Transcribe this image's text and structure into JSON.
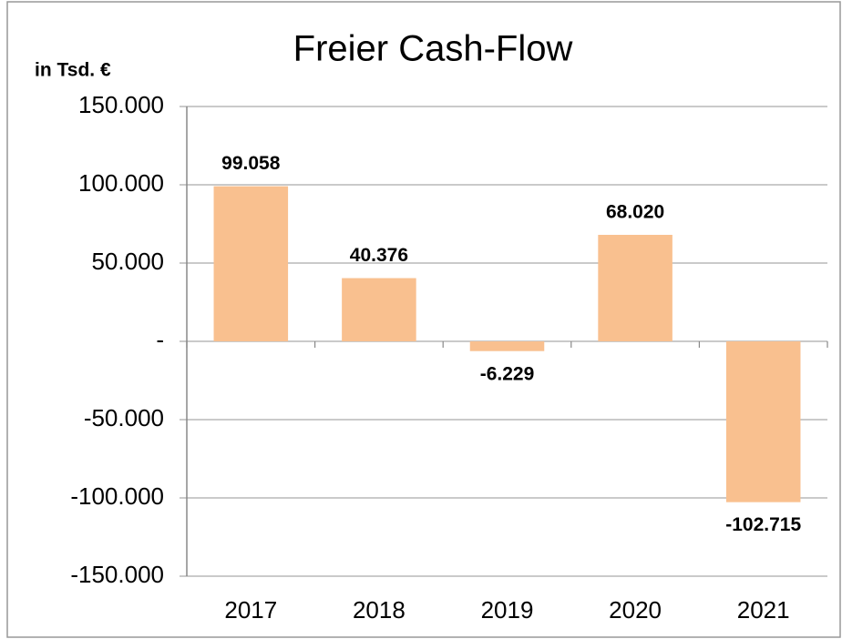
{
  "chart_data": {
    "type": "bar",
    "title": "Freier Cash-Flow",
    "y_label": "in Tsd. €",
    "categories": [
      "2017",
      "2018",
      "2019",
      "2020",
      "2021"
    ],
    "values": [
      99058,
      40376,
      -6229,
      68020,
      -102715
    ],
    "value_labels": [
      "99.058",
      "40.376",
      "-6.229",
      "68.020",
      "-102.715"
    ],
    "color": "#f9c08f",
    "ylim": [
      -150000,
      150000
    ],
    "yticks": [
      {
        "value": -150000,
        "label": "-150.000"
      },
      {
        "value": -100000,
        "label": "-100.000"
      },
      {
        "value": -50000,
        "label": "-50.000"
      },
      {
        "value": 0,
        "label": "-"
      },
      {
        "value": 50000,
        "label": "50.000"
      },
      {
        "value": 100000,
        "label": "100.000"
      },
      {
        "value": 150000,
        "label": "150.000"
      }
    ],
    "grid": true
  }
}
